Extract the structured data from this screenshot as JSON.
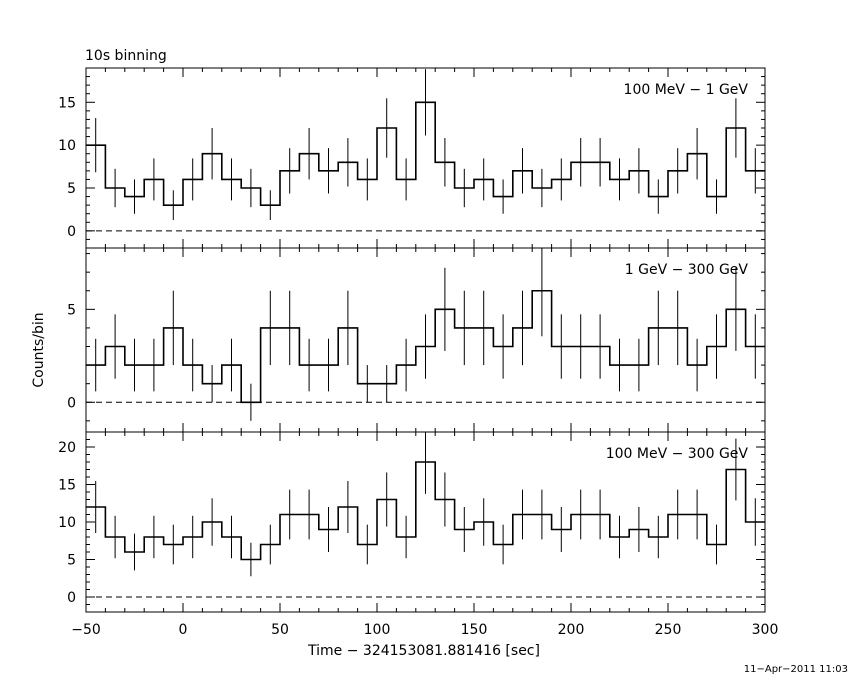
{
  "chart_data": {
    "type": "histogram",
    "title": "10s binning",
    "xlabel": "Time − 324153081.881416 [sec]",
    "ylabel": "Counts/bin",
    "xlim": [
      -50,
      300
    ],
    "x_ticks": [
      "−50",
      "0",
      "50",
      "100",
      "150",
      "200",
      "250",
      "300"
    ],
    "bin_width": 10,
    "bin_centers": [
      -45,
      -35,
      -25,
      -15,
      -5,
      5,
      15,
      25,
      35,
      45,
      55,
      65,
      75,
      85,
      95,
      105,
      115,
      125,
      135,
      145,
      155,
      165,
      175,
      185,
      195,
      205,
      215,
      225,
      235,
      245,
      255,
      265,
      275,
      285,
      295
    ],
    "panels": [
      {
        "label": "100 MeV − 1 GeV",
        "ylim": [
          -2,
          19
        ],
        "y_ticks": [
          "0",
          "5",
          "10",
          "15"
        ],
        "values": [
          10,
          5,
          4,
          6,
          3,
          6,
          9,
          6,
          5,
          3,
          7,
          9,
          7,
          8,
          6,
          12,
          6,
          15,
          8,
          5,
          6,
          4,
          7,
          5,
          6,
          8,
          8,
          6,
          7,
          4,
          7,
          9,
          4,
          12,
          7
        ]
      },
      {
        "label": "1 GeV − 300 GeV",
        "ylim": [
          -1.6,
          8.3
        ],
        "y_ticks": [
          "0",
          "5"
        ],
        "values": [
          2,
          3,
          2,
          2,
          4,
          2,
          1,
          2,
          0,
          4,
          4,
          2,
          2,
          4,
          1,
          1,
          2,
          3,
          5,
          4,
          4,
          3,
          4,
          6,
          3,
          3,
          3,
          2,
          2,
          4,
          4,
          2,
          3,
          5,
          3
        ]
      },
      {
        "label": "100 MeV − 300 GeV",
        "ylim": [
          -2,
          22
        ],
        "y_ticks": [
          "0",
          "5",
          "10",
          "15",
          "20"
        ],
        "values": [
          12,
          8,
          6,
          8,
          7,
          8,
          10,
          8,
          5,
          7,
          11,
          11,
          9,
          12,
          7,
          13,
          8,
          18,
          13,
          9,
          10,
          7,
          11,
          11,
          9,
          11,
          11,
          8,
          9,
          8,
          11,
          11,
          7,
          17,
          10
        ]
      }
    ],
    "grid": false,
    "legend": "none"
  },
  "footer": {
    "timestamp": "11−Apr−2011 11:03"
  }
}
